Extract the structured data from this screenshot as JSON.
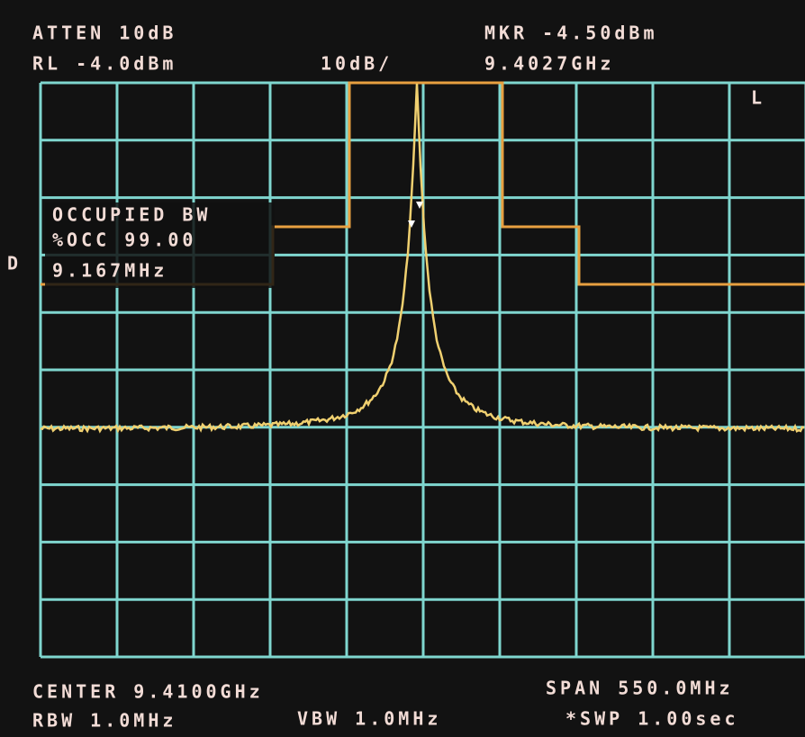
{
  "header": {
    "atten": "ATTEN 10dB",
    "ref_level": "RL -4.0dBm",
    "scale": "10dB/",
    "marker_level": "MKR -4.50dBm",
    "marker_freq": "9.4027GHz"
  },
  "screen": {
    "mode_flag": "L",
    "side_flag": "D",
    "occupied_bw": {
      "title": "OCCUPIED BW",
      "occ": "%OCC 99.00",
      "bandwidth": "9.167MHz"
    }
  },
  "footer": {
    "center": "CENTER 9.4100GHz",
    "span": "SPAN 550.0MHz",
    "rbw": "RBW 1.0MHz",
    "vbw": "VBW 1.0MHz",
    "sweep": "*SWP 1.00sec"
  }
}
